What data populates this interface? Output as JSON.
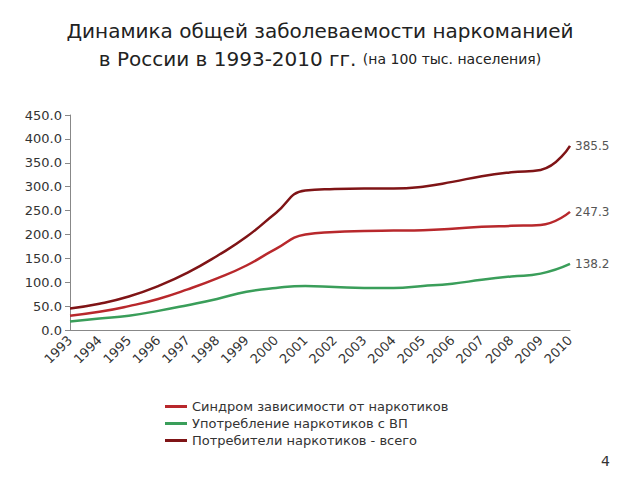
{
  "chart_data": {
    "type": "line",
    "title": "Динамика общей заболеваемости наркоманией в России в 1993-2010 гг.",
    "subtitle": "(на 100 тыс. населения)",
    "annotations": [
      "4"
    ],
    "categories": [
      "1993",
      "1994",
      "1995",
      "1996",
      "1997",
      "1998",
      "1999",
      "2000",
      "2001",
      "2002",
      "2003",
      "2004",
      "2005",
      "2006",
      "2007",
      "2008",
      "2009",
      "2010"
    ],
    "series": [
      {
        "name": "Синдром зависимости от наркотиков",
        "color": "#b8282c",
        "values": [
          30,
          38,
          50,
          65,
          85,
          108,
          135,
          170,
          200,
          205,
          207,
          208,
          209,
          212,
          216,
          218,
          220,
          247.3
        ],
        "value_labels": [
          null,
          null,
          null,
          null,
          null,
          null,
          null,
          null,
          null,
          null,
          null,
          null,
          null,
          null,
          null,
          null,
          null,
          "247.3"
        ]
      },
      {
        "name": "Употребление наркотиков с ВП",
        "color": "#3a9e5a",
        "values": [
          18,
          24,
          30,
          40,
          52,
          65,
          80,
          88,
          92,
          90,
          88,
          88,
          92,
          97,
          105,
          112,
          118,
          138.2
        ],
        "value_labels": [
          null,
          null,
          null,
          null,
          null,
          null,
          null,
          null,
          null,
          null,
          null,
          null,
          null,
          null,
          null,
          null,
          null,
          "138.2"
        ]
      },
      {
        "name": "Потребители наркотиков - всего",
        "color": "#7f1416",
        "values": [
          45,
          55,
          70,
          92,
          120,
          155,
          195,
          245,
          292,
          295,
          296,
          296,
          300,
          310,
          322,
          330,
          335,
          385.5
        ],
        "value_labels": [
          null,
          null,
          null,
          null,
          null,
          null,
          null,
          null,
          null,
          null,
          null,
          null,
          null,
          null,
          null,
          null,
          null,
          "385.5"
        ]
      }
    ],
    "ylim": [
      0,
      450
    ],
    "yticks": [
      {
        "value": 0,
        "label": "0.0"
      },
      {
        "value": 50,
        "label": "50.0"
      },
      {
        "value": 100,
        "label": "100.0"
      },
      {
        "value": 150,
        "label": "150.0"
      },
      {
        "value": 200,
        "label": "200.0"
      },
      {
        "value": 250,
        "label": "250.0"
      },
      {
        "value": 300,
        "label": "300.0"
      },
      {
        "value": 350,
        "label": "350.0"
      },
      {
        "value": 400,
        "label": "400.0"
      },
      {
        "value": 450,
        "label": "450.0"
      }
    ],
    "grid": false,
    "legend": "bottom",
    "data_labels": true
  }
}
